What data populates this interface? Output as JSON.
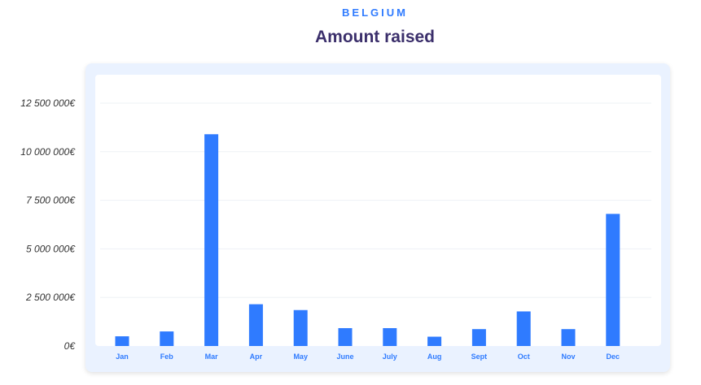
{
  "header": {
    "country": "BELGIUM",
    "title": "Amount raised"
  },
  "colors": {
    "bar": "#2f7bff",
    "title": "#3b2f6b",
    "frame": "#eaf2ff"
  },
  "chart_data": {
    "type": "bar",
    "title": "Amount raised",
    "xlabel": "",
    "ylabel": "",
    "categories": [
      "Jan",
      "Feb",
      "Mar",
      "Apr",
      "May",
      "June",
      "July",
      "Aug",
      "Sept",
      "Oct",
      "Nov",
      "Dec"
    ],
    "values": [
      500000,
      750000,
      10900000,
      2150000,
      1850000,
      920000,
      920000,
      480000,
      870000,
      1780000,
      870000,
      6800000
    ],
    "ylim": [
      0,
      12500000
    ],
    "yticks": [
      0,
      2500000,
      5000000,
      7500000,
      10000000,
      12500000
    ],
    "ytick_labels": [
      "0€",
      "2 500 000€",
      "5 000 000€",
      "7 500 000€",
      "10 000 000€",
      "12 500 000€"
    ],
    "grid": true,
    "legend": "none"
  }
}
